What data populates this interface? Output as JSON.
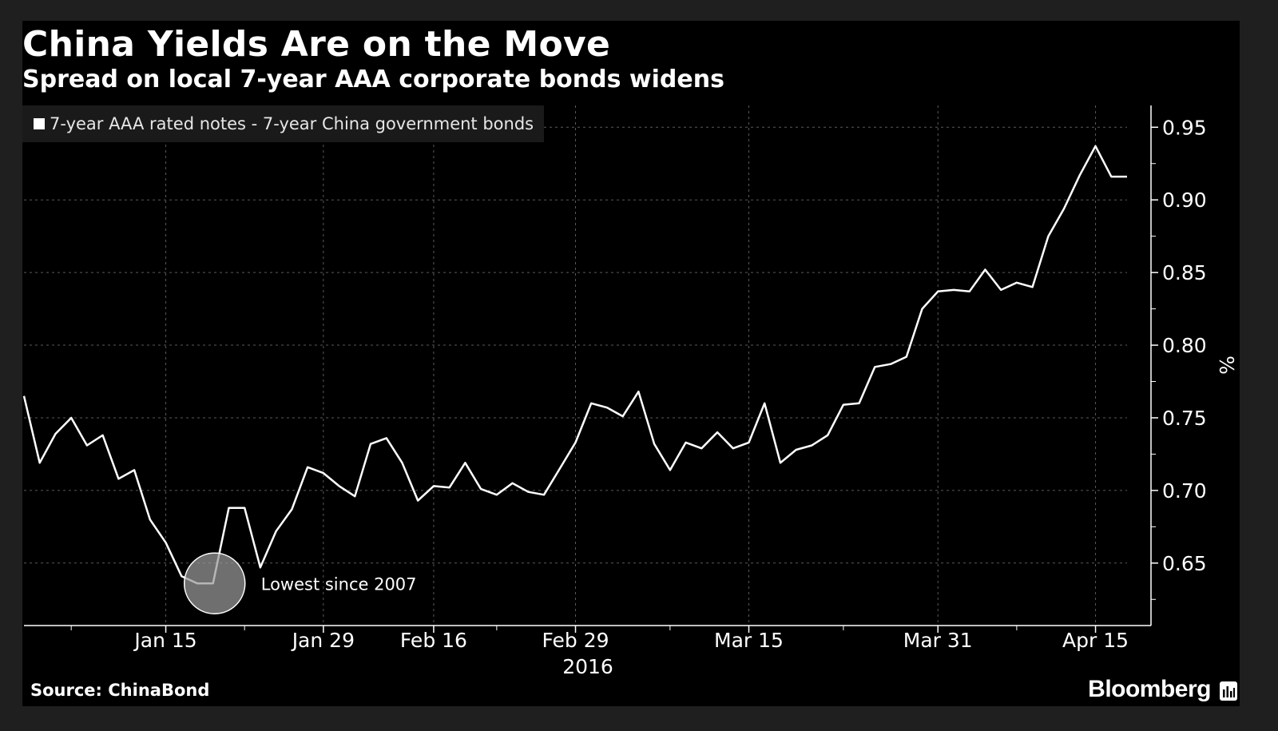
{
  "header": {
    "title": "China Yields Are on the Move",
    "subtitle": "Spread on local 7-year AAA corporate bonds widens"
  },
  "footer": {
    "source": "Source: ChinaBond",
    "brand": "Bloomberg"
  },
  "colors": {
    "background": "#000000",
    "line": "#ffffff",
    "grid": "#5a5a5a"
  },
  "chart_data": {
    "type": "line",
    "title": "China Yields Are on the Move",
    "subtitle": "Spread on local 7-year AAA corporate bonds widens",
    "ylabel": "%",
    "xlabel": "2016",
    "ylim": [
      0.607,
      0.965
    ],
    "y_ticks": [
      0.65,
      0.7,
      0.75,
      0.8,
      0.85,
      0.9,
      0.95
    ],
    "y_tick_labels": [
      "0.65",
      "0.70",
      "0.75",
      "0.80",
      "0.85",
      "0.90",
      "0.95"
    ],
    "x_tick_labels": [
      "Jan 15",
      "Jan 29",
      "Feb 16",
      "Feb 29",
      "Mar 15",
      "Mar 31",
      "Apr 15"
    ],
    "x_tick_index": [
      9,
      19,
      26,
      35,
      46,
      58,
      68
    ],
    "x_sub_label": "2016",
    "legend": [
      "7-year AAA rated notes - 7-year China government bonds"
    ],
    "legend_position": "top-left",
    "grid": true,
    "series": [
      {
        "name": "7-year AAA rated notes - 7-year China government bonds",
        "values": [
          0.765,
          0.719,
          0.739,
          0.75,
          0.731,
          0.738,
          0.708,
          0.714,
          0.68,
          0.664,
          0.641,
          0.636,
          0.636,
          0.688,
          0.688,
          0.647,
          0.672,
          0.687,
          0.716,
          0.712,
          0.703,
          0.696,
          0.732,
          0.736,
          0.719,
          0.693,
          0.703,
          0.702,
          0.719,
          0.701,
          0.697,
          0.705,
          0.699,
          0.697,
          0.715,
          0.733,
          0.76,
          0.757,
          0.751,
          0.768,
          0.732,
          0.714,
          0.733,
          0.729,
          0.74,
          0.729,
          0.733,
          0.76,
          0.719,
          0.728,
          0.731,
          0.738,
          0.759,
          0.76,
          0.785,
          0.787,
          0.792,
          0.825,
          0.837,
          0.838,
          0.837,
          0.852,
          0.838,
          0.843,
          0.84,
          0.875,
          0.894,
          0.917,
          0.937,
          0.916,
          0.916
        ]
      }
    ],
    "annotations": [
      {
        "text": "Lowest since 2007",
        "index": 12,
        "value": 0.636
      }
    ]
  }
}
